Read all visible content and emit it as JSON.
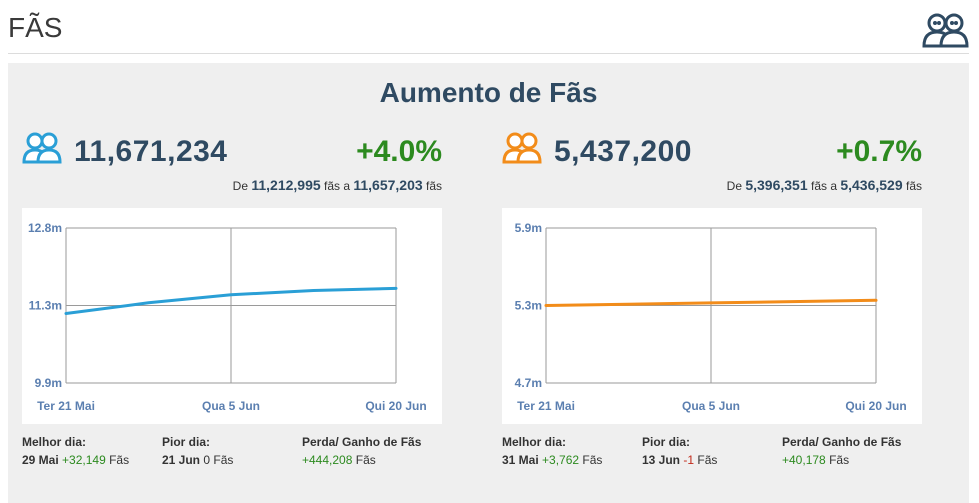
{
  "page": {
    "title": "FÃS",
    "header_icon": "fans-icon"
  },
  "panel": {
    "title": "Aumento de Fãs"
  },
  "stats": [
    {
      "icon": "fans-icon",
      "icon_color": "#2a9fd6",
      "count": "11,671,234",
      "change": "+4.0%",
      "range_prefix": "De",
      "range_from": "11,212,995",
      "range_mid": "fãs a",
      "range_to": "11,657,203",
      "range_suffix": "fãs",
      "line_color": "#2a9fd6",
      "chart_data": {
        "type": "line",
        "x_ticks": [
          "Ter 21 Mai",
          "Qua 5 Jun",
          "Qui 20 Jun"
        ],
        "y_ticks": [
          "12.8m",
          "11.3m",
          "9.9m"
        ],
        "ylim": [
          9.9,
          12.8
        ],
        "x": [
          "21 Mai",
          "28 Mai",
          "5 Jun",
          "12 Jun",
          "20 Jun"
        ],
        "values": [
          11.2,
          11.4,
          11.55,
          11.63,
          11.67
        ]
      },
      "footer": {
        "best_label": "Melhor dia:",
        "best_date": "29 Mai",
        "best_value": "+32,149",
        "best_unit": "Fãs",
        "worst_label": "Pior dia:",
        "worst_date": "21 Jun",
        "worst_value": "0",
        "worst_unit": "Fãs",
        "net_label": "Perda/ Ganho de Fãs",
        "net_value": "+444,208",
        "net_unit": "Fãs"
      }
    },
    {
      "icon": "fans-icon",
      "icon_color": "#f28c1a",
      "count": "5,437,200",
      "change": "+0.7%",
      "range_prefix": "De",
      "range_from": "5,396,351",
      "range_mid": "fãs a",
      "range_to": "5,436,529",
      "range_suffix": "fãs",
      "line_color": "#f28c1a",
      "chart_data": {
        "type": "line",
        "x_ticks": [
          "Ter 21 Mai",
          "Qua 5 Jun",
          "Qui 20 Jun"
        ],
        "y_ticks": [
          "5.9m",
          "5.3m",
          "4.7m"
        ],
        "ylim": [
          4.7,
          5.9
        ],
        "x": [
          "21 Mai",
          "5 Jun",
          "20 Jun"
        ],
        "values": [
          5.3,
          5.32,
          5.34
        ]
      },
      "footer": {
        "best_label": "Melhor dia:",
        "best_date": "31 Mai",
        "best_value": "+3,762",
        "best_unit": "Fãs",
        "worst_label": "Pior dia:",
        "worst_date": "13 Jun",
        "worst_value": "-1",
        "worst_unit": "Fãs",
        "net_label": "Perda/ Ganho de Fãs",
        "net_value": "+40,178",
        "net_unit": "Fãs"
      }
    }
  ]
}
